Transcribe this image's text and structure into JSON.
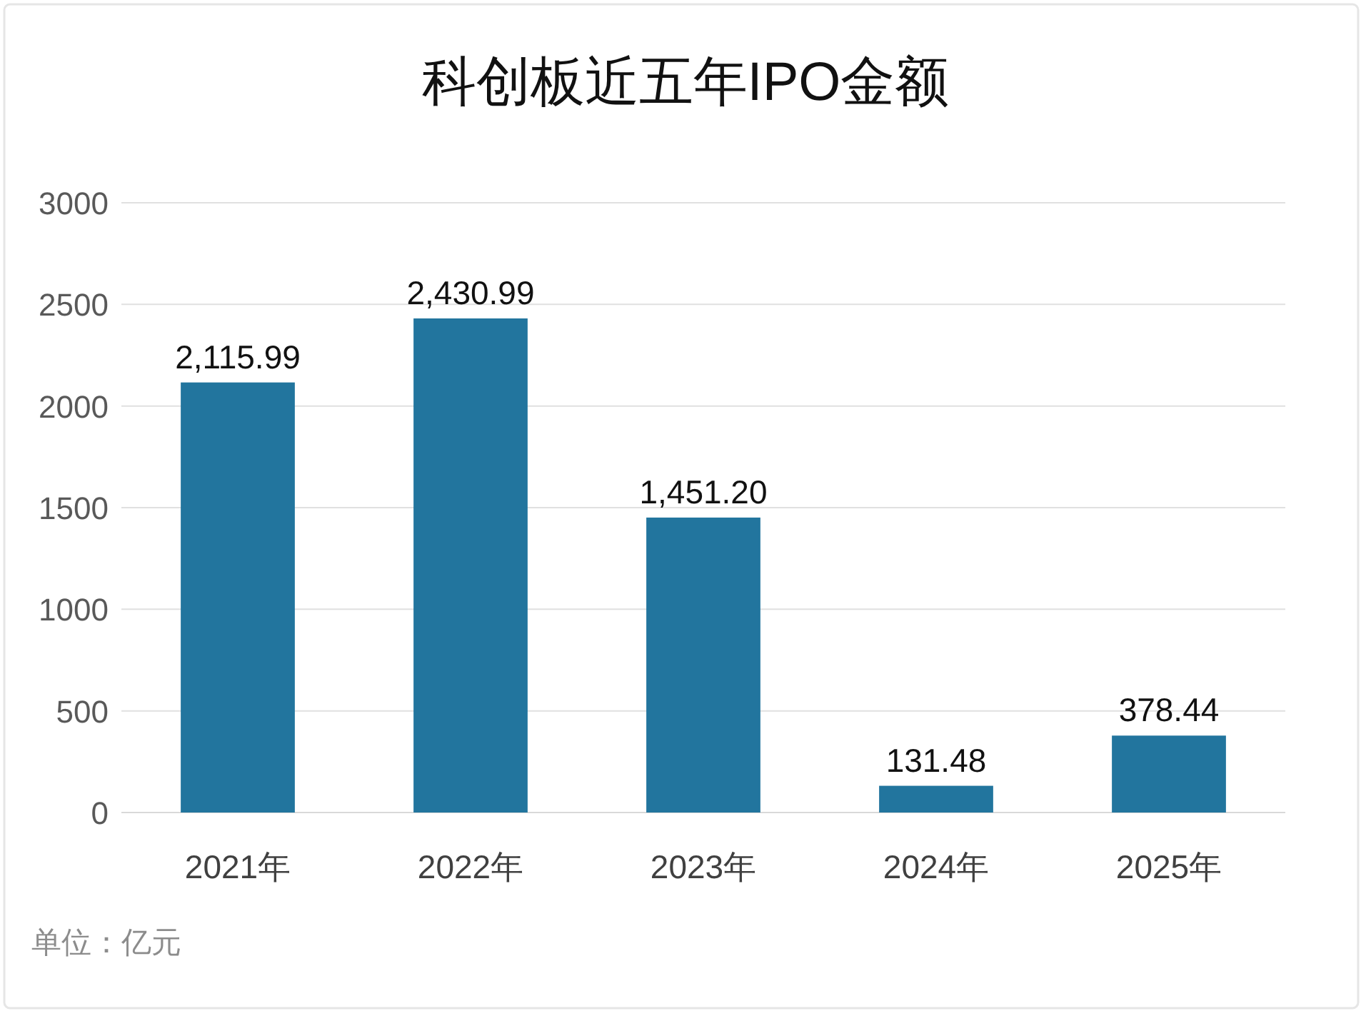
{
  "chart_data": {
    "type": "bar",
    "title": "科创板近五年IPO金额",
    "categories": [
      "2021年",
      "2022年",
      "2023年",
      "2024年",
      "2025年"
    ],
    "values": [
      2115.99,
      2430.99,
      1451.2,
      131.48,
      378.44
    ],
    "value_labels": [
      "2,115.99",
      "2,430.99",
      "1,451.20",
      "131.48",
      "378.44"
    ],
    "color": "#22759e",
    "ylim": [
      0,
      3000
    ],
    "yticks": [
      0,
      500,
      1000,
      1500,
      2000,
      2500,
      3000
    ],
    "grid": "y",
    "annotations": [
      "单位：亿元"
    ]
  }
}
